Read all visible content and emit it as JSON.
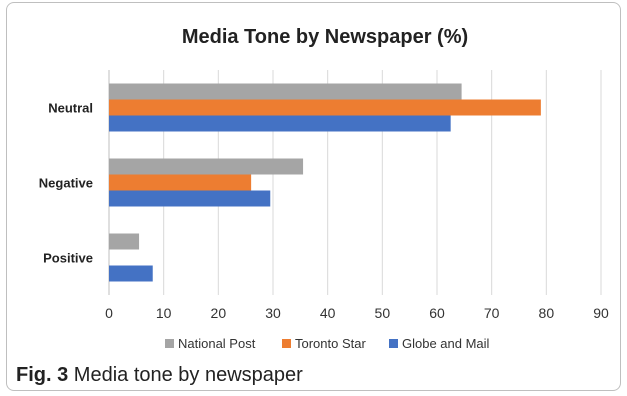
{
  "chart_data": {
    "type": "bar",
    "orientation": "horizontal",
    "title": "Media Tone by Newspaper (%)",
    "categories": [
      "Neutral",
      "Negative",
      "Positive"
    ],
    "series": [
      {
        "name": "National Post",
        "color": "#a5a5a5",
        "values": [
          64.5,
          35.5,
          5.5
        ]
      },
      {
        "name": "Toronto Star",
        "color": "#ed7d31",
        "values": [
          79,
          26,
          0
        ]
      },
      {
        "name": "Globe and Mail",
        "color": "#4472c4",
        "values": [
          62.5,
          29.5,
          8
        ]
      }
    ],
    "xlim": [
      0,
      90
    ],
    "xticks": [
      0,
      10,
      20,
      30,
      40,
      50,
      60,
      70,
      80,
      90
    ],
    "grid": true,
    "legend_position": "bottom"
  },
  "caption": {
    "label": "Fig. 3",
    "text": "Media tone by newspaper"
  }
}
